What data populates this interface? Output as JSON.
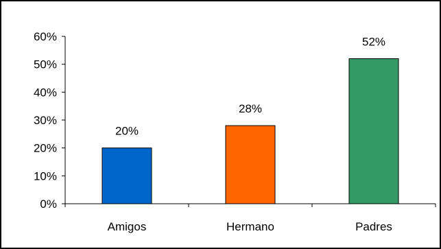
{
  "chart_data": {
    "type": "bar",
    "title": "",
    "xlabel": "",
    "ylabel": "",
    "categories": [
      "Amigos",
      "Hermano",
      "Padres"
    ],
    "values": [
      0.2,
      0.28,
      0.52
    ],
    "data_labels": [
      "20%",
      "28%",
      "52%"
    ],
    "colors": [
      "#0066CC",
      "#FF6600",
      "#339966"
    ],
    "ylim": [
      0,
      0.6
    ],
    "yticks": [
      0,
      0.1,
      0.2,
      0.3,
      0.4,
      0.5,
      0.6
    ],
    "ytick_labels": [
      "0%",
      "10%",
      "20%",
      "30%",
      "40%",
      "50%",
      "60%"
    ],
    "grid": false,
    "legend": "none"
  }
}
